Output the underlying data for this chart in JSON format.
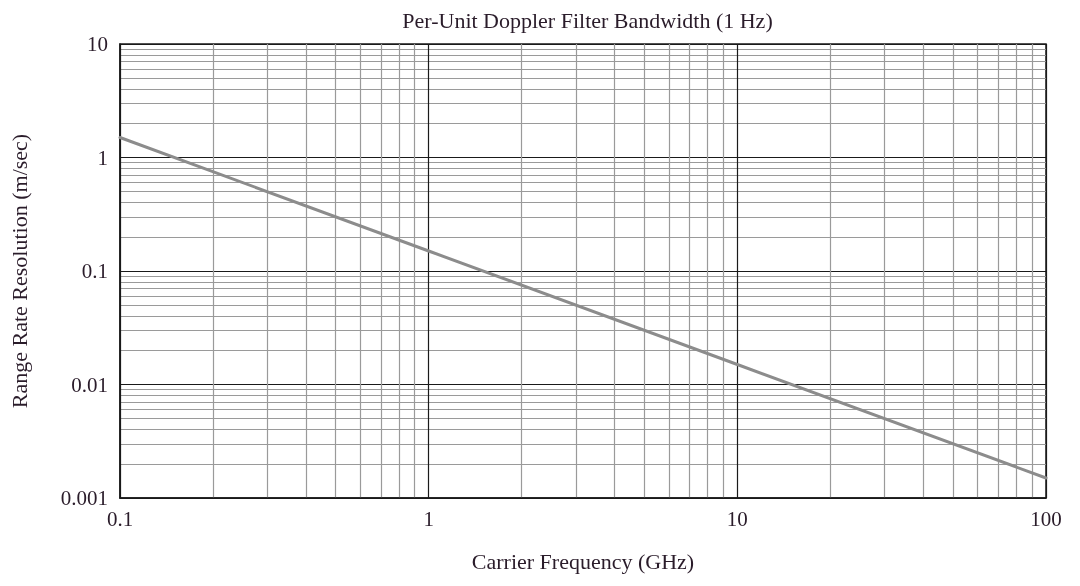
{
  "chart_data": {
    "type": "line",
    "title": "Per-Unit Doppler Filter Bandwidth (1 Hz)",
    "xlabel": "Carrier Frequency (GHz)",
    "ylabel": "Range Rate Resolution (m/sec)",
    "x": [
      0.1,
      1,
      10,
      100
    ],
    "series": [
      {
        "color": "#8c8c8c",
        "values": [
          1.5,
          0.15,
          0.015,
          0.0015
        ]
      }
    ],
    "log": "xy",
    "xlim": [
      0.1,
      100
    ],
    "ylim": [
      0.001,
      10
    ],
    "xticks": [
      0.1,
      {
        "value": 0.2,
        "label": null
      },
      {
        "value": 0.3,
        "label": null
      },
      {
        "value": 0.4,
        "label": null
      },
      {
        "value": 0.5,
        "label": null
      },
      {
        "value": 0.6,
        "label": null
      },
      {
        "value": 0.7,
        "label": null
      },
      {
        "value": 0.8,
        "label": null
      },
      {
        "value": 0.9,
        "label": null
      },
      1,
      {
        "value": 2,
        "label": null
      },
      {
        "value": 3,
        "label": null
      },
      {
        "value": 4,
        "label": null
      },
      {
        "value": 5,
        "label": null
      },
      {
        "value": 6,
        "label": null
      },
      {
        "value": 7,
        "label": null
      },
      {
        "value": 8,
        "label": null
      },
      {
        "value": 9,
        "label": null
      },
      10,
      {
        "value": 20,
        "label": null
      },
      {
        "value": 30,
        "label": null
      },
      {
        "value": 40,
        "label": null
      },
      {
        "value": 50,
        "label": null
      },
      {
        "value": 60,
        "label": null
      },
      {
        "value": 70,
        "label": null
      },
      {
        "value": 80,
        "label": null
      },
      {
        "value": 90,
        "label": null
      },
      100
    ],
    "yticks": [
      0.001,
      {
        "value": 0.002,
        "label": null
      },
      {
        "value": 0.003,
        "label": null
      },
      {
        "value": 0.004,
        "label": null
      },
      {
        "value": 0.005,
        "label": null
      },
      {
        "value": 0.006,
        "label": null
      },
      {
        "value": 0.007,
        "label": null
      },
      {
        "value": 0.008,
        "label": null
      },
      {
        "value": 0.009,
        "label": null
      },
      0.01,
      {
        "value": 0.02,
        "label": null
      },
      {
        "value": 0.03,
        "label": null
      },
      {
        "value": 0.04,
        "label": null
      },
      {
        "value": 0.05,
        "label": null
      },
      {
        "value": 0.06,
        "label": null
      },
      {
        "value": 0.07,
        "label": null
      },
      {
        "value": 0.08,
        "label": null
      },
      {
        "value": 0.09,
        "label": null
      },
      0.1,
      {
        "value": 0.2,
        "label": null
      },
      {
        "value": 0.3,
        "label": null
      },
      {
        "value": 0.4,
        "label": null
      },
      {
        "value": 0.5,
        "label": null
      },
      {
        "value": 0.6,
        "label": null
      },
      {
        "value": 0.7,
        "label": null
      },
      {
        "value": 0.8,
        "label": null
      },
      {
        "value": 0.9,
        "label": null
      },
      1,
      {
        "value": 2,
        "label": null
      },
      {
        "value": 3,
        "label": null
      },
      {
        "value": 4,
        "label": null
      },
      {
        "value": 5,
        "label": null
      },
      {
        "value": 6,
        "label": null
      },
      {
        "value": 7,
        "label": null
      },
      {
        "value": 8,
        "label": null
      },
      {
        "value": 9,
        "label": null
      },
      10
    ],
    "grid": true,
    "marker": "none",
    "line_style": "solid"
  }
}
